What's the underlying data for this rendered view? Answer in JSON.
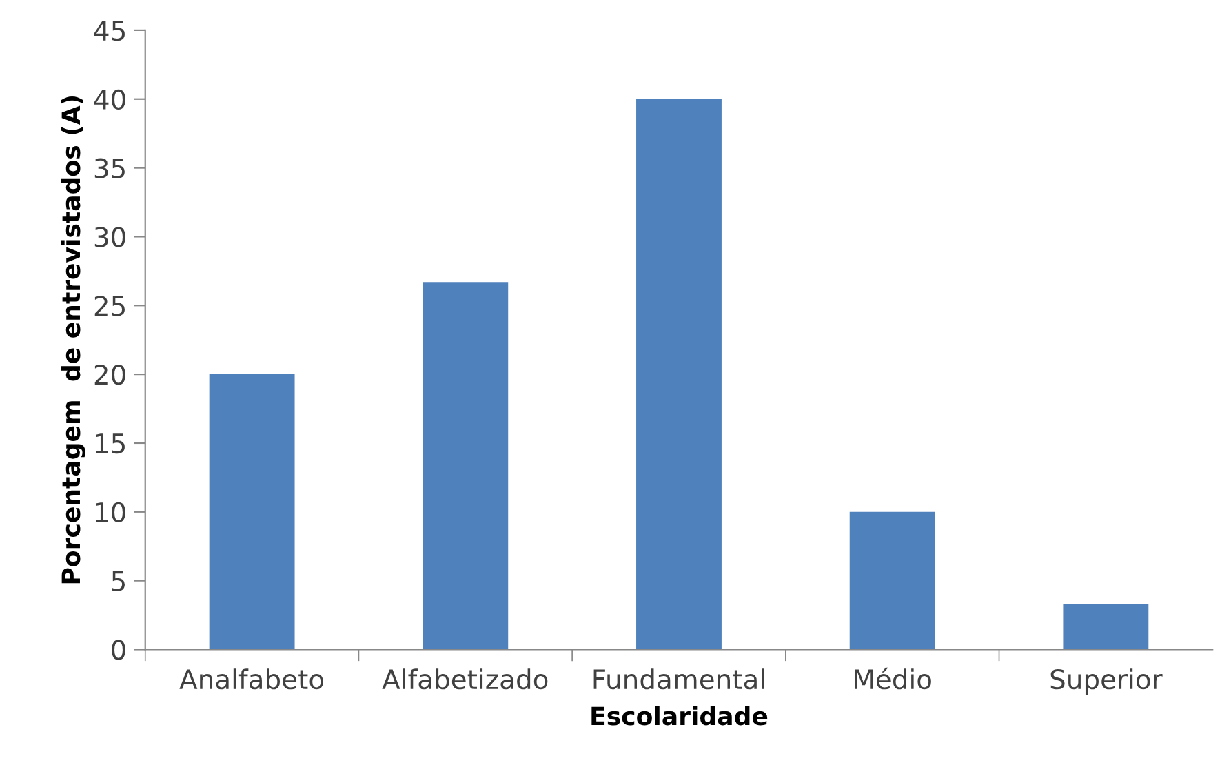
{
  "chart_data": {
    "type": "bar",
    "xlabel": "Escolaridade",
    "ylabel": "Porcentagem  de entrevistados (A)",
    "categories": [
      "Analfabeto",
      "Alfabetizado",
      "Fundamental",
      "Médio",
      "Superior"
    ],
    "values": [
      20,
      26.7,
      40,
      10,
      3.3
    ],
    "color": "#4f81bd",
    "ylim": [
      0,
      45
    ],
    "yticks": [
      0,
      5,
      10,
      15,
      20,
      25,
      30,
      35,
      40,
      45
    ],
    "grid": false,
    "legend": false
  }
}
